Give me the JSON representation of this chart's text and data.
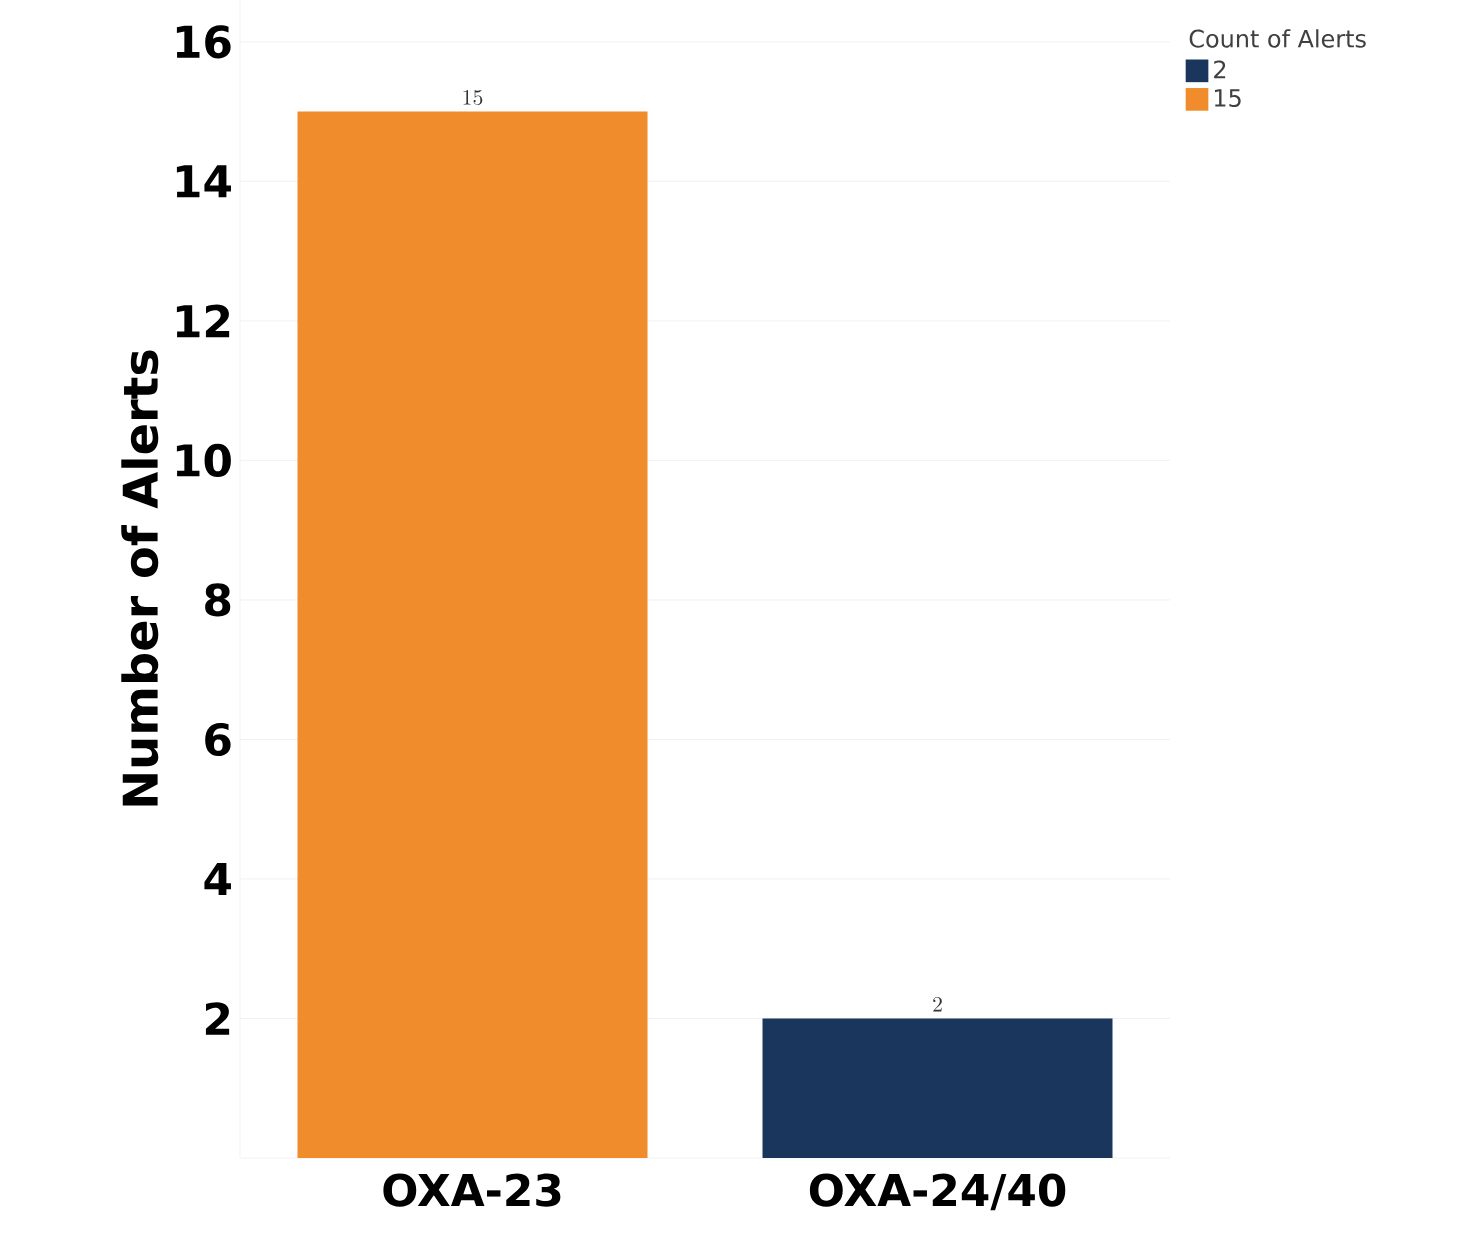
{
  "chart_data": {
    "type": "bar",
    "ylabel": "Number of Alerts",
    "legend_title": "Count of Alerts",
    "categories": [
      "OXA-23",
      "OXA-24/40"
    ],
    "series": [
      {
        "name": "2",
        "color": "#1b365d",
        "values": [
          null,
          2
        ]
      },
      {
        "name": "15",
        "color": "#f08c2c",
        "values": [
          15,
          null
        ]
      }
    ],
    "ylim": [
      0,
      16.6
    ],
    "yticks": [
      2,
      4,
      6,
      8,
      10,
      12,
      14,
      16
    ],
    "grid": "y",
    "legend": "top right",
    "data_labels": true
  }
}
